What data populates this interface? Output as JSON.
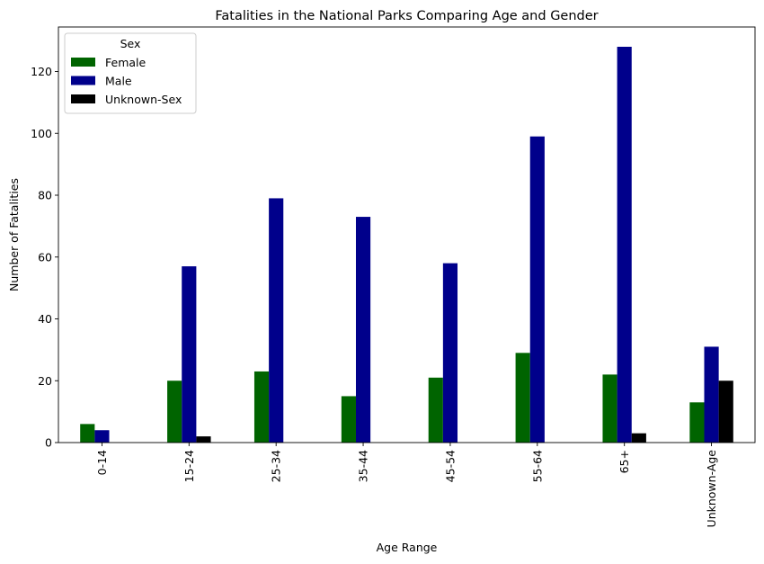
{
  "chart_data": {
    "type": "bar",
    "title": "Fatalities in the National Parks Comparing Age and Gender",
    "xlabel": "Age Range",
    "ylabel": "Number of Fatalities",
    "categories": [
      "0-14",
      "15-24",
      "25-34",
      "35-44",
      "45-54",
      "55-64",
      "65+",
      "Unknown-Age"
    ],
    "series": [
      {
        "name": "Female",
        "color": "#006400",
        "values": [
          6,
          20,
          23,
          15,
          21,
          29,
          22,
          13
        ]
      },
      {
        "name": "Male",
        "color": "#00008b",
        "values": [
          4,
          57,
          79,
          73,
          58,
          99,
          128,
          31
        ]
      },
      {
        "name": "Unknown-Sex",
        "color": "#000000",
        "values": [
          0,
          2,
          0,
          0,
          0,
          0,
          3,
          20
        ]
      }
    ],
    "yticks": [
      0,
      20,
      40,
      60,
      80,
      100,
      120
    ],
    "ylim": [
      0,
      134.4
    ],
    "legend": {
      "title": "Sex",
      "position": "top-left"
    },
    "grid": false
  }
}
